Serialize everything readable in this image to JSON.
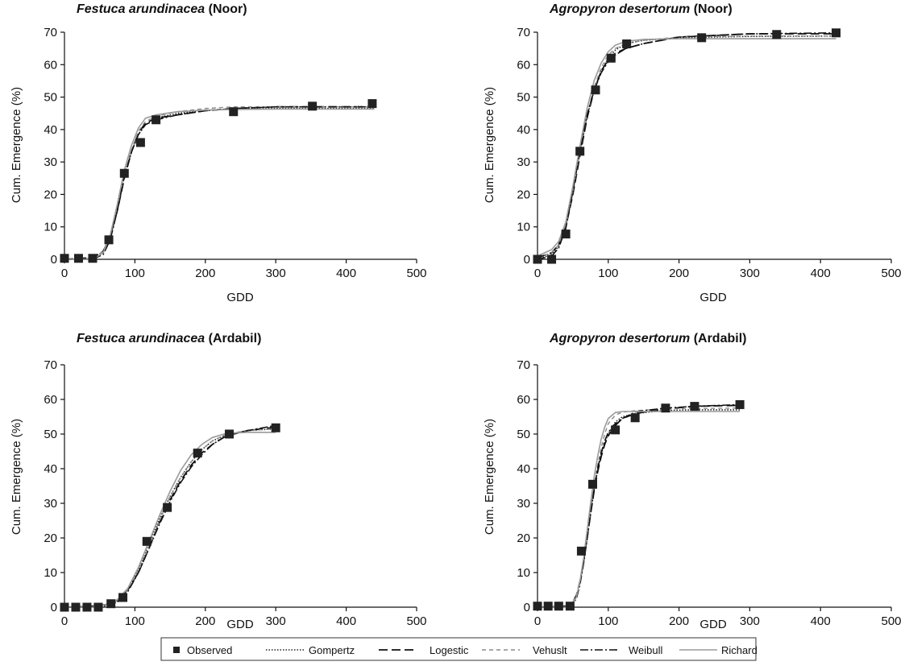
{
  "legend": {
    "items": [
      {
        "name": "Observed",
        "kind": "marker",
        "color": "#222222"
      },
      {
        "name": "Gompertz",
        "kind": "line",
        "color": "#222222",
        "dash": "dotted"
      },
      {
        "name": "Logestic",
        "kind": "line",
        "color": "#111111",
        "dash": "long-dash"
      },
      {
        "name": "Vehuslt",
        "kind": "line",
        "color": "#8a8a8a",
        "dash": "short-dash"
      },
      {
        "name": "Weibull",
        "kind": "line",
        "color": "#111111",
        "dash": "dash-dot"
      },
      {
        "name": "Richard",
        "kind": "line",
        "color": "#9a9a9a",
        "dash": "solid"
      }
    ]
  },
  "chart_data": [
    {
      "type": "line",
      "title_italic": "Festuca arundinacea",
      "title_rest": " (Noor)",
      "xlabel": "GDD",
      "ylabel": "Cum. Emergence (%)",
      "xlim": [
        0,
        500
      ],
      "ylim": [
        0,
        70
      ],
      "xticks": [
        0,
        100,
        200,
        300,
        400,
        500
      ],
      "yticks": [
        0,
        10,
        20,
        30,
        40,
        50,
        60,
        70
      ],
      "observed": {
        "x": [
          0,
          20,
          40,
          63,
          85,
          108,
          130,
          240,
          352,
          437
        ],
        "y": [
          0.3,
          0.3,
          0.3,
          6,
          26.5,
          36,
          43,
          45.5,
          47.2,
          48
        ]
      },
      "models": [
        {
          "name": "Gompertz",
          "x": [
            0,
            40,
            55,
            65,
            75,
            85,
            95,
            105,
            115,
            130,
            160,
            200,
            240,
            300,
            440
          ],
          "y": [
            0,
            0,
            2,
            7,
            16,
            26,
            33,
            38.5,
            41.5,
            43.5,
            45,
            46,
            46.3,
            46.5,
            46.5
          ]
        },
        {
          "name": "Logestic",
          "x": [
            0,
            40,
            55,
            65,
            75,
            85,
            95,
            105,
            115,
            130,
            160,
            200,
            240,
            300,
            440
          ],
          "y": [
            0,
            0.5,
            2.5,
            7,
            15,
            25,
            33,
            39,
            42,
            43.5,
            44.5,
            45.8,
            46.5,
            47,
            47
          ]
        },
        {
          "name": "Vehuslt",
          "x": [
            0,
            40,
            55,
            65,
            75,
            85,
            95,
            105,
            115,
            130,
            160,
            200,
            240,
            300,
            440
          ],
          "y": [
            0,
            0.3,
            2.5,
            7.5,
            16,
            26,
            33.5,
            39.5,
            42.5,
            44,
            45.5,
            46.5,
            47,
            47,
            47
          ]
        },
        {
          "name": "Weibull",
          "x": [
            0,
            40,
            55,
            65,
            75,
            85,
            95,
            105,
            115,
            130,
            160,
            200,
            240,
            300,
            440
          ],
          "y": [
            0,
            0,
            1.5,
            6,
            15,
            25.5,
            33,
            38.5,
            41.5,
            43,
            44.5,
            45.8,
            46.5,
            47,
            47
          ]
        },
        {
          "name": "Richard",
          "x": [
            0,
            40,
            55,
            65,
            75,
            85,
            95,
            105,
            115,
            130,
            160,
            200,
            240,
            300,
            440
          ],
          "y": [
            0,
            0,
            2,
            7.5,
            17,
            27.5,
            35,
            40.5,
            43.5,
            44.5,
            45.5,
            46,
            46.2,
            46.3,
            46.3
          ]
        }
      ]
    },
    {
      "type": "line",
      "title_italic": "Agropyron desertorum",
      "title_rest": " (Noor)",
      "xlabel": "GDD",
      "ylabel": "Cum. Emergence (%)",
      "xlim": [
        0,
        500
      ],
      "ylim": [
        0,
        70
      ],
      "xticks": [
        0,
        100,
        200,
        300,
        400,
        500
      ],
      "yticks": [
        0,
        10,
        20,
        30,
        40,
        50,
        60,
        70
      ],
      "observed": {
        "x": [
          0,
          20,
          40,
          60,
          82,
          104,
          126,
          232,
          338,
          422
        ],
        "y": [
          0,
          0,
          7.8,
          33.3,
          52.2,
          62,
          66.4,
          68.3,
          69.3,
          69.8
        ]
      },
      "models": [
        {
          "name": "Gompertz",
          "x": [
            0,
            20,
            30,
            40,
            50,
            60,
            70,
            80,
            90,
            100,
            110,
            125,
            150,
            200,
            300,
            422
          ],
          "y": [
            0,
            1.5,
            4,
            10,
            21,
            33,
            44,
            52,
            58,
            62,
            64.5,
            66.5,
            67.5,
            68.3,
            68.7,
            68.8
          ]
        },
        {
          "name": "Logestic",
          "x": [
            0,
            20,
            30,
            40,
            50,
            60,
            70,
            80,
            90,
            100,
            110,
            125,
            150,
            200,
            300,
            422
          ],
          "y": [
            0.5,
            2,
            4.5,
            10,
            20,
            32,
            43.5,
            52,
            58,
            61.5,
            63.5,
            65,
            66.5,
            68.5,
            69.5,
            69.5
          ]
        },
        {
          "name": "Vehuslt",
          "x": [
            0,
            20,
            30,
            40,
            50,
            60,
            70,
            80,
            90,
            100,
            110,
            125,
            150,
            200,
            300,
            422
          ],
          "y": [
            0.5,
            2,
            4.5,
            10.5,
            21,
            33,
            44.5,
            53,
            59,
            63,
            65,
            66.5,
            67.5,
            68.5,
            68.8,
            68.8
          ]
        },
        {
          "name": "Weibull",
          "x": [
            0,
            20,
            30,
            40,
            50,
            60,
            70,
            80,
            90,
            100,
            110,
            125,
            150,
            200,
            300,
            422
          ],
          "y": [
            0,
            1,
            3.5,
            9.5,
            21,
            33.5,
            44.5,
            52,
            57.5,
            61,
            63,
            65,
            66.5,
            68.5,
            69.5,
            69.8
          ]
        },
        {
          "name": "Richard",
          "x": [
            0,
            20,
            30,
            40,
            50,
            60,
            70,
            80,
            90,
            100,
            110,
            125,
            150,
            200,
            300,
            422
          ],
          "y": [
            1,
            3,
            5.5,
            11.5,
            22.5,
            35,
            46.5,
            55,
            60.5,
            64,
            66,
            67.2,
            67.8,
            68,
            68,
            68
          ]
        }
      ]
    },
    {
      "type": "line",
      "title_italic": "Festuca arundinacea",
      "title_rest": " (Ardabil)",
      "xlabel": "GDD",
      "ylabel": "Cum. Emergence (%)",
      "xlim": [
        0,
        500
      ],
      "ylim": [
        0,
        70
      ],
      "xticks": [
        0,
        100,
        200,
        300,
        400,
        500
      ],
      "yticks": [
        0,
        10,
        20,
        30,
        40,
        50,
        60,
        70
      ],
      "observed": {
        "x": [
          0,
          16,
          32,
          48,
          66,
          83,
          117,
          146,
          189,
          234,
          300
        ],
        "y": [
          0,
          0,
          0,
          0,
          1,
          2.8,
          19,
          28.8,
          44.5,
          50,
          51.8
        ]
      },
      "models": [
        {
          "name": "Gompertz",
          "x": [
            0,
            40,
            60,
            75,
            90,
            105,
            120,
            135,
            150,
            165,
            180,
            195,
            210,
            230,
            260,
            300
          ],
          "y": [
            0,
            0,
            0.5,
            1.5,
            5,
            11,
            18.5,
            25.5,
            32,
            37.5,
            42,
            45.5,
            48,
            49.8,
            51,
            51.5
          ]
        },
        {
          "name": "Logestic",
          "x": [
            0,
            40,
            60,
            75,
            90,
            105,
            120,
            135,
            150,
            165,
            180,
            195,
            210,
            230,
            260,
            300
          ],
          "y": [
            0,
            0.3,
            0.8,
            2,
            5,
            10,
            17,
            24.5,
            31,
            36.5,
            41,
            44.5,
            47,
            49.5,
            51,
            52
          ]
        },
        {
          "name": "Vehuslt",
          "x": [
            0,
            40,
            60,
            75,
            90,
            105,
            120,
            135,
            150,
            165,
            180,
            195,
            210,
            230,
            260,
            300
          ],
          "y": [
            0,
            0.3,
            0.8,
            2,
            5,
            10.5,
            17.5,
            25,
            32,
            37.5,
            42,
            45.5,
            48,
            50,
            51,
            51.5
          ]
        },
        {
          "name": "Weibull",
          "x": [
            0,
            40,
            60,
            75,
            90,
            105,
            120,
            135,
            150,
            165,
            180,
            195,
            210,
            230,
            260,
            300
          ],
          "y": [
            0,
            0,
            0.5,
            1.5,
            4.5,
            10,
            17,
            24,
            30.5,
            36,
            40.5,
            44,
            47,
            49.5,
            51,
            52.5
          ]
        },
        {
          "name": "Richard",
          "x": [
            0,
            40,
            60,
            75,
            90,
            105,
            120,
            135,
            150,
            165,
            180,
            195,
            210,
            230,
            260,
            300
          ],
          "y": [
            0,
            0,
            0.8,
            2.2,
            5.5,
            11.5,
            19,
            26.5,
            33.5,
            39.5,
            44,
            47,
            49,
            50.2,
            50.5,
            50.5
          ]
        }
      ]
    },
    {
      "type": "line",
      "title_italic": "Agropyron desertorum",
      "title_rest": " (Ardabil)",
      "xlabel": "GDD",
      "ylabel": "Cum. Emergence (%)",
      "xlim": [
        0,
        500
      ],
      "ylim": [
        0,
        70
      ],
      "xticks": [
        0,
        100,
        200,
        300,
        400,
        500
      ],
      "yticks": [
        0,
        10,
        20,
        30,
        40,
        50,
        60,
        70
      ],
      "observed": {
        "x": [
          0,
          15,
          30,
          46,
          62,
          78,
          110,
          138,
          181,
          222,
          286
        ],
        "y": [
          0.3,
          0.3,
          0.3,
          0.3,
          16.2,
          35.5,
          51.2,
          54.7,
          57.5,
          58,
          58.5
        ]
      },
      "models": [
        {
          "name": "Gompertz",
          "x": [
            0,
            40,
            50,
            55,
            60,
            65,
            70,
            75,
            80,
            85,
            90,
            95,
            100,
            110,
            120,
            140,
            180,
            220,
            286
          ],
          "y": [
            0,
            0,
            1,
            3,
            7,
            13,
            20,
            27,
            34,
            39.5,
            44,
            47.5,
            50,
            53.5,
            55,
            56,
            56.8,
            57,
            57
          ]
        },
        {
          "name": "Logestic",
          "x": [
            0,
            40,
            50,
            55,
            60,
            65,
            70,
            75,
            80,
            85,
            90,
            95,
            100,
            110,
            120,
            140,
            180,
            220,
            286
          ],
          "y": [
            0,
            0.3,
            1.5,
            3.5,
            7.5,
            13,
            20,
            27,
            33.5,
            39,
            43.5,
            47,
            49.5,
            52.5,
            54.5,
            56,
            57.2,
            58,
            58.3
          ]
        },
        {
          "name": "Vehuslt",
          "x": [
            0,
            40,
            50,
            55,
            60,
            65,
            70,
            75,
            80,
            85,
            90,
            95,
            100,
            110,
            120,
            140,
            180,
            220,
            286
          ],
          "y": [
            0,
            0.3,
            1.5,
            3.5,
            7.5,
            13.5,
            20.5,
            28,
            35,
            41,
            46,
            50,
            53,
            55.5,
            56.3,
            56.8,
            57.2,
            57.4,
            57.5
          ]
        },
        {
          "name": "Weibull",
          "x": [
            0,
            40,
            50,
            55,
            60,
            65,
            70,
            75,
            80,
            85,
            90,
            95,
            100,
            110,
            120,
            140,
            180,
            220,
            286
          ],
          "y": [
            0,
            0,
            1,
            2.5,
            6.5,
            12.5,
            19.5,
            27,
            34,
            40,
            44.5,
            48,
            50.5,
            53,
            54.5,
            56.5,
            57.5,
            58,
            58.5
          ]
        },
        {
          "name": "Richard",
          "x": [
            0,
            40,
            50,
            55,
            60,
            65,
            70,
            75,
            80,
            85,
            90,
            95,
            100,
            110,
            120,
            140,
            180,
            220,
            286
          ],
          "y": [
            0,
            0,
            1,
            3,
            7.5,
            14,
            22,
            30,
            37.5,
            43.5,
            48.5,
            52,
            54.5,
            56.2,
            56.5,
            56.5,
            56.5,
            56.5,
            56.5
          ]
        }
      ]
    }
  ]
}
